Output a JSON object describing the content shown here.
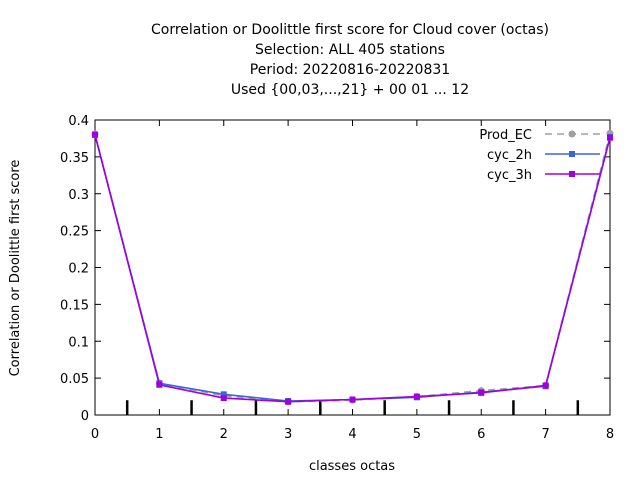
{
  "chart_data": {
    "type": "line",
    "title_lines": [
      "Correlation or Doolittle first score  for Cloud cover (octas)",
      "Selection: ALL    405 stations",
      "Period: 20220816-20220831",
      "Used {00,03,...,21} + 00 01 ... 12"
    ],
    "xlabel": "classes octas",
    "ylabel": "Correlation or Doolittle first score",
    "xlim": [
      0,
      8
    ],
    "ylim": [
      0,
      0.4
    ],
    "x_ticks": [
      "0",
      "1",
      "2",
      "3",
      "4",
      "5",
      "6",
      "7",
      "8"
    ],
    "y_ticks": [
      "0",
      "0.05",
      "0.1",
      "0.15",
      "0.2",
      "0.25",
      "0.3",
      "0.35",
      "0.4"
    ],
    "x": [
      0,
      1,
      2,
      3,
      4,
      5,
      6,
      7,
      8
    ],
    "legend_position": "top-right",
    "series": [
      {
        "name": "Prod_EC",
        "color": "#a0a0a0",
        "dash": "dashed",
        "marker": "circle",
        "values": [
          0.381,
          0.043,
          0.026,
          0.018,
          0.02,
          0.025,
          0.033,
          0.04,
          0.382
        ]
      },
      {
        "name": "cyc_2h",
        "color": "#3a66d8",
        "dash": "solid",
        "marker": "square",
        "values": [
          0.38,
          0.043,
          0.028,
          0.019,
          0.021,
          0.024,
          0.031,
          0.039,
          0.377
        ]
      },
      {
        "name": "cyc_3h",
        "color": "#a000e0",
        "dash": "solid",
        "marker": "square",
        "values": [
          0.38,
          0.041,
          0.023,
          0.018,
          0.021,
          0.025,
          0.03,
          0.04,
          0.376
        ]
      }
    ],
    "class_boundaries": [
      0.5,
      1.5,
      2.5,
      3.5,
      4.5,
      5.5,
      6.5,
      7.5
    ],
    "boundary_marker_height": 0.02
  }
}
